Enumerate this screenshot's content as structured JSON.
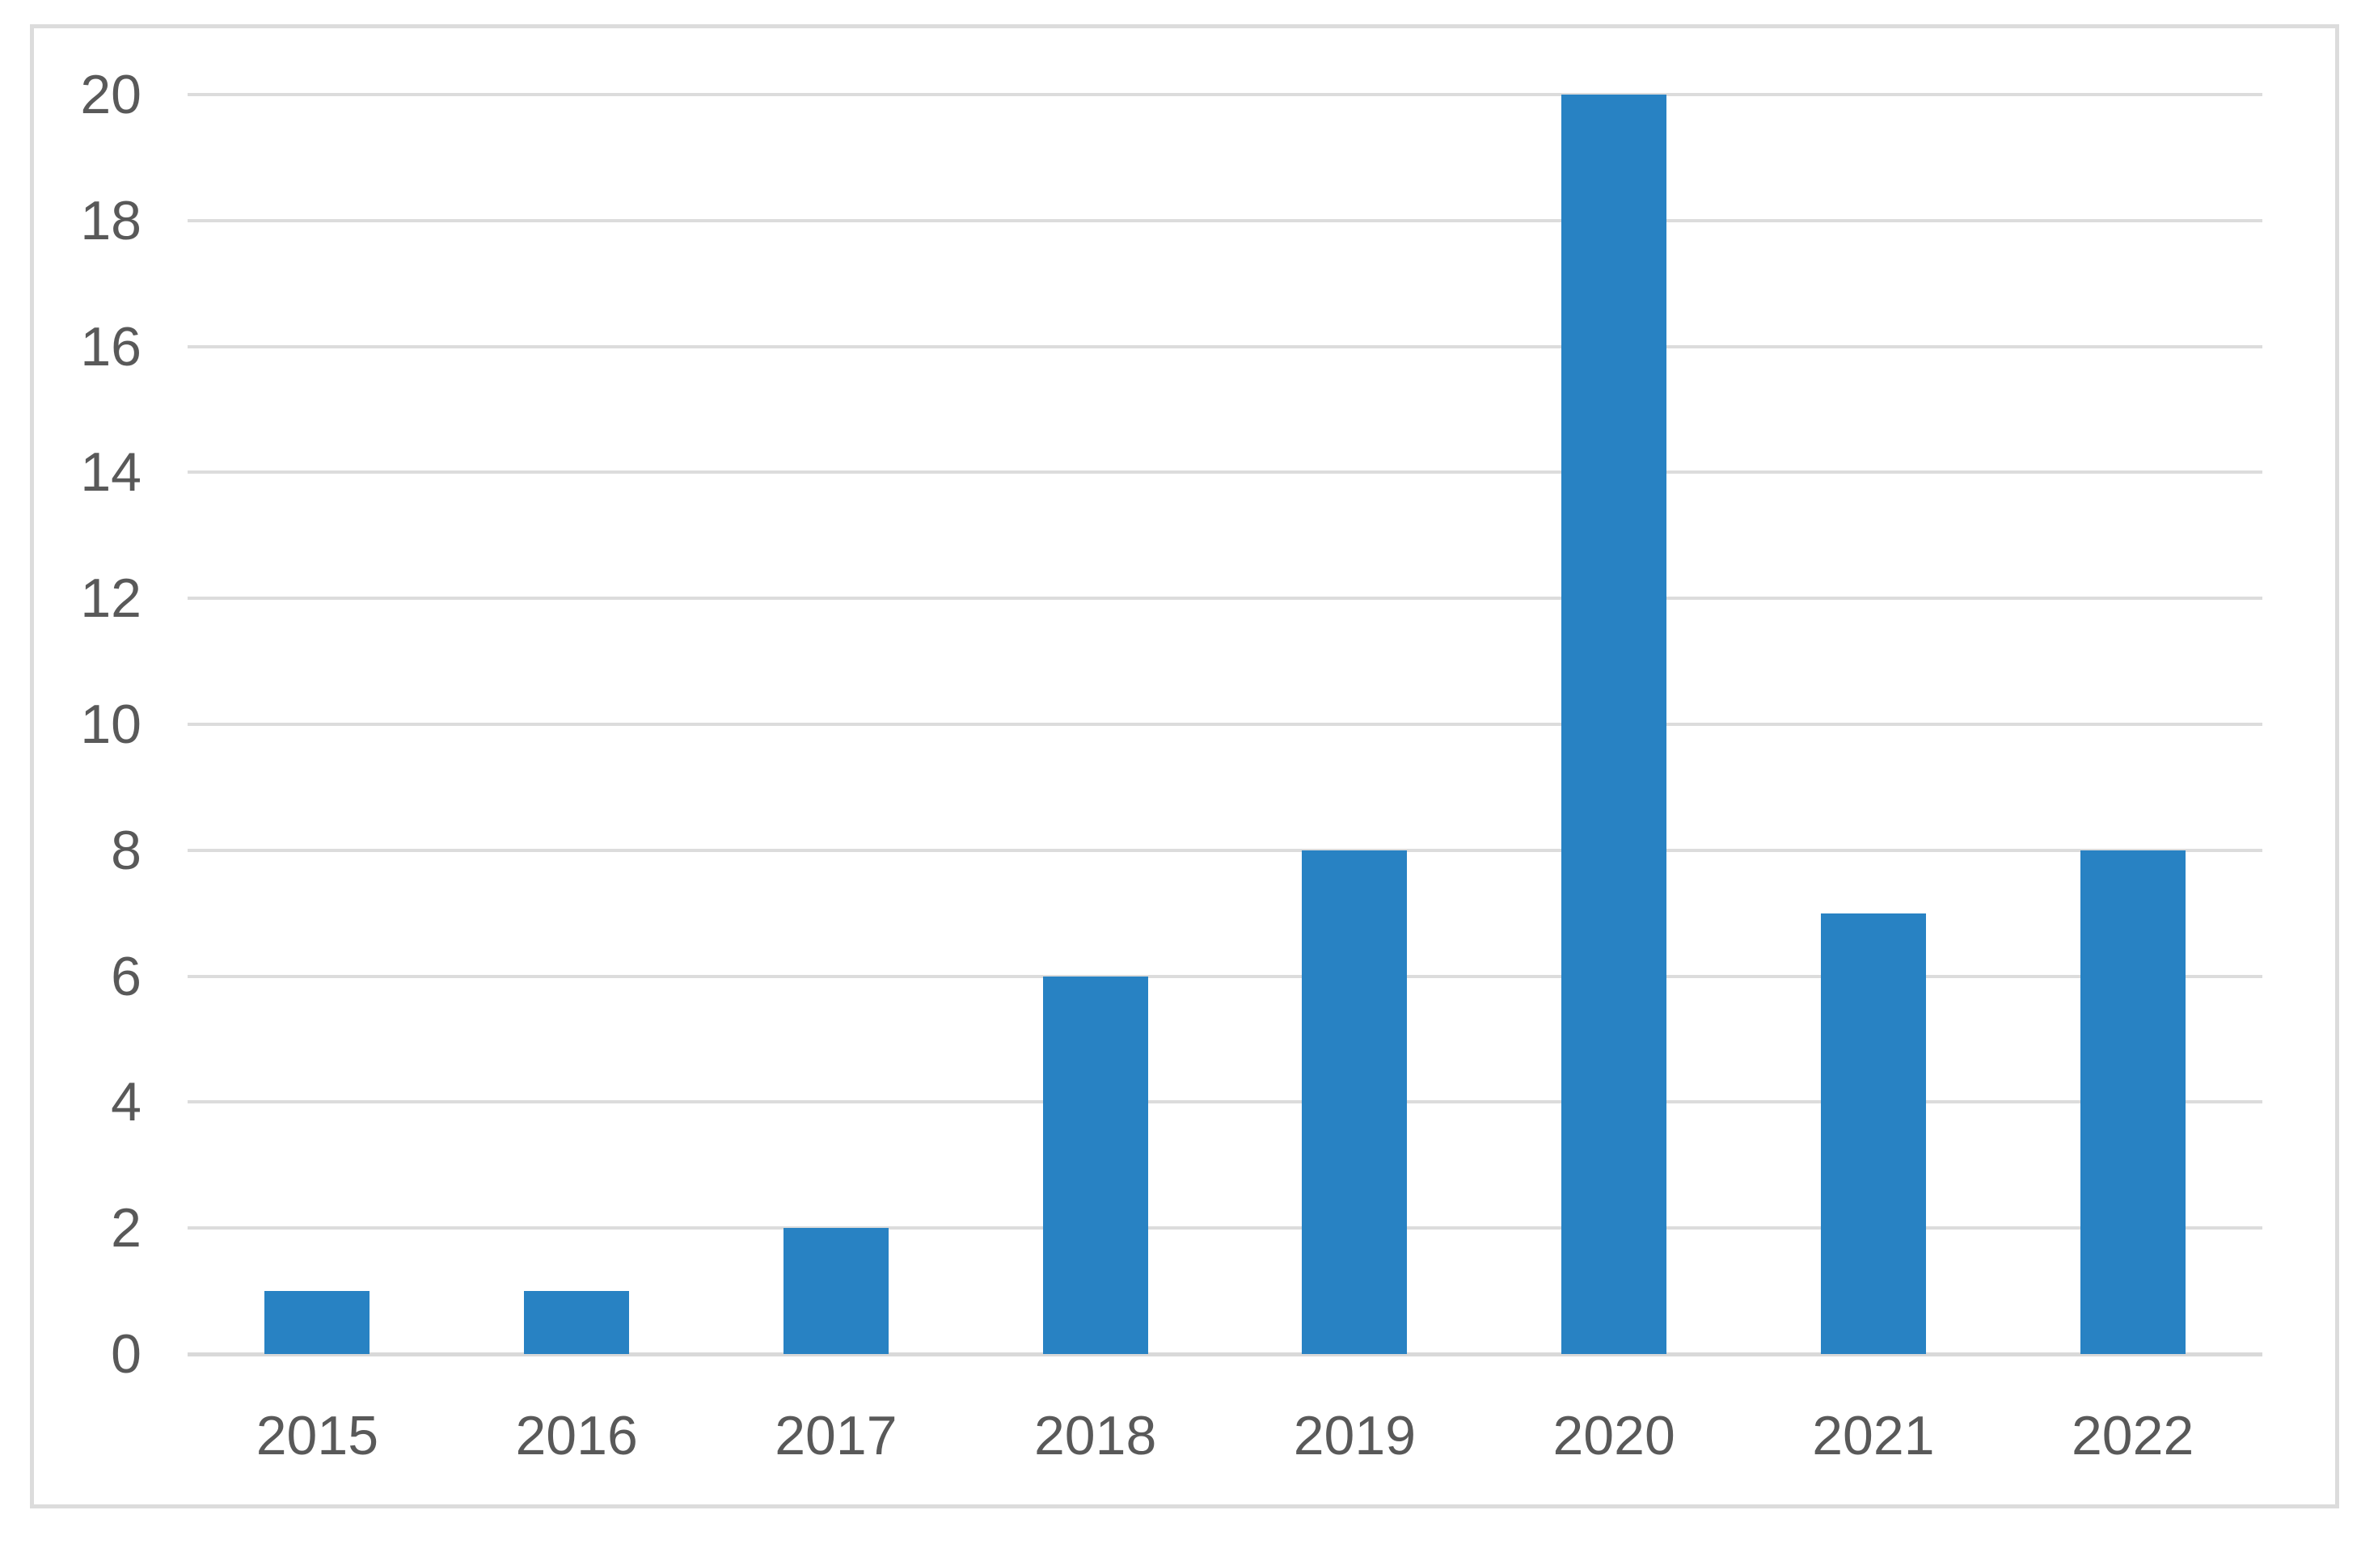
{
  "chart_data": {
    "type": "bar",
    "title": "",
    "xlabel": "",
    "ylabel": "",
    "categories": [
      "2015",
      "2016",
      "2017",
      "2018",
      "2019",
      "2020",
      "2021",
      "2022"
    ],
    "values": [
      1,
      1,
      2,
      6,
      8,
      20,
      7,
      8
    ],
    "ylim": [
      0,
      20
    ],
    "ytick_interval": 2,
    "ytick_labels": [
      "0",
      "2",
      "4",
      "6",
      "8",
      "10",
      "12",
      "14",
      "16",
      "18",
      "20"
    ],
    "grid": "horizontal-only",
    "legend": false,
    "bar_color": "#2882c3",
    "gridline_color": "#dcdcdc",
    "baseline_color": "#d9d9d9",
    "frame_border_color": "#dcdcdc",
    "tick_label_color": "#595959",
    "background_color": "#ffffff"
  }
}
